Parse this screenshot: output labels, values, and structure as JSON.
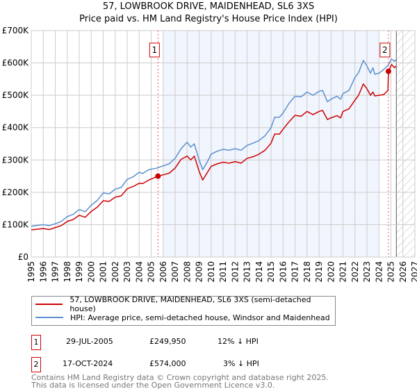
{
  "chart_data": {
    "type": "line",
    "title": "57, LOWBROOK DRIVE, MAIDENHEAD, SL6 3XS",
    "subtitle": "Price paid vs. HM Land Registry's House Price Index (HPI)",
    "xlim": [
      1995,
      2027
    ],
    "ylim": [
      0,
      700000
    ],
    "x_ticks": [
      1995,
      1996,
      1997,
      1998,
      1999,
      2000,
      2001,
      2002,
      2003,
      2004,
      2005,
      2006,
      2007,
      2008,
      2009,
      2010,
      2011,
      2012,
      2013,
      2014,
      2015,
      2016,
      2017,
      2018,
      2019,
      2020,
      2021,
      2022,
      2023,
      2024,
      2025,
      2026,
      2027
    ],
    "y_ticks": [
      {
        "v": 0,
        "label": "£0"
      },
      {
        "v": 100000,
        "label": "£100K"
      },
      {
        "v": 200000,
        "label": "£200K"
      },
      {
        "v": 300000,
        "label": "£300K"
      },
      {
        "v": 400000,
        "label": "£400K"
      },
      {
        "v": 500000,
        "label": "£500K"
      },
      {
        "v": 600000,
        "label": "£600K"
      },
      {
        "v": 700000,
        "label": "£700K"
      }
    ],
    "grid": true,
    "shaded_range": [
      2006.0,
      2024.0
    ],
    "forecast_hatch_from": 2025.45,
    "series": [
      {
        "name": "57, LOWBROOK DRIVE, MAIDENHEAD, SL6 3XS (semi-detached house)",
        "color": "#cc0000",
        "points": [
          [
            1995,
            84
          ],
          [
            1996,
            88
          ],
          [
            1996.5,
            85
          ],
          [
            1997,
            91
          ],
          [
            1997.5,
            97
          ],
          [
            1998,
            110
          ],
          [
            1998.5,
            116
          ],
          [
            1999,
            129
          ],
          [
            1999.5,
            123
          ],
          [
            2000,
            141
          ],
          [
            2000.5,
            154
          ],
          [
            2001,
            174
          ],
          [
            2001.5,
            172
          ],
          [
            2002,
            185
          ],
          [
            2002.5,
            189
          ],
          [
            2003,
            211
          ],
          [
            2003.5,
            218
          ],
          [
            2004,
            228
          ],
          [
            2004.3,
            227
          ],
          [
            2004.8,
            238
          ],
          [
            2005.57,
            249.95
          ],
          [
            2006,
            254
          ],
          [
            2006.5,
            259
          ],
          [
            2007,
            275
          ],
          [
            2007.5,
            302
          ],
          [
            2008,
            312
          ],
          [
            2008.3,
            300
          ],
          [
            2008.6,
            312
          ],
          [
            2009,
            265
          ],
          [
            2009.3,
            238
          ],
          [
            2009.7,
            262
          ],
          [
            2010,
            280
          ],
          [
            2010.5,
            288
          ],
          [
            2011,
            293
          ],
          [
            2011.5,
            290
          ],
          [
            2012,
            295
          ],
          [
            2012.5,
            290
          ],
          [
            2013,
            305
          ],
          [
            2013.5,
            310
          ],
          [
            2014,
            318
          ],
          [
            2014.5,
            330
          ],
          [
            2015,
            352
          ],
          [
            2015.3,
            380
          ],
          [
            2015.7,
            380
          ],
          [
            2016,
            395
          ],
          [
            2016.5,
            418
          ],
          [
            2017,
            438
          ],
          [
            2017.5,
            435
          ],
          [
            2018,
            450
          ],
          [
            2018.5,
            440
          ],
          [
            2019,
            450
          ],
          [
            2019.3,
            453
          ],
          [
            2019.7,
            425
          ],
          [
            2020,
            430
          ],
          [
            2020.5,
            437
          ],
          [
            2020.8,
            430
          ],
          [
            2021,
            450
          ],
          [
            2021.5,
            458
          ],
          [
            2022,
            485
          ],
          [
            2022.3,
            500
          ],
          [
            2022.7,
            535
          ],
          [
            2023,
            520
          ],
          [
            2023.3,
            500
          ],
          [
            2023.5,
            510
          ],
          [
            2023.65,
            498
          ],
          [
            2024,
            500
          ],
          [
            2024.4,
            502
          ],
          [
            2024.75,
            515
          ],
          [
            2024.79,
            574
          ],
          [
            2025.05,
            595
          ],
          [
            2025.3,
            585
          ],
          [
            2025.4,
            590
          ]
        ]
      },
      {
        "name": "HPI: Average price, semi-detached house, Windsor and Maidenhead",
        "color": "#5b8fd0",
        "points": [
          [
            1995,
            95
          ],
          [
            1996,
            100
          ],
          [
            1996.5,
            97
          ],
          [
            1997,
            103
          ],
          [
            1997.5,
            110
          ],
          [
            1998,
            125
          ],
          [
            1998.5,
            132
          ],
          [
            1999,
            147
          ],
          [
            1999.5,
            140
          ],
          [
            2000,
            160
          ],
          [
            2000.5,
            175
          ],
          [
            2001,
            198
          ],
          [
            2001.5,
            195
          ],
          [
            2002,
            210
          ],
          [
            2002.5,
            215
          ],
          [
            2003,
            240
          ],
          [
            2003.5,
            248
          ],
          [
            2004,
            262
          ],
          [
            2004.3,
            258
          ],
          [
            2004.8,
            270
          ],
          [
            2005.5,
            275
          ],
          [
            2006,
            282
          ],
          [
            2006.5,
            288
          ],
          [
            2007,
            305
          ],
          [
            2007.5,
            335
          ],
          [
            2008,
            355
          ],
          [
            2008.3,
            340
          ],
          [
            2008.6,
            350
          ],
          [
            2009,
            300
          ],
          [
            2009.3,
            270
          ],
          [
            2009.7,
            295
          ],
          [
            2010,
            318
          ],
          [
            2010.5,
            327
          ],
          [
            2011,
            333
          ],
          [
            2011.5,
            330
          ],
          [
            2012,
            335
          ],
          [
            2012.5,
            330
          ],
          [
            2013,
            345
          ],
          [
            2013.5,
            352
          ],
          [
            2014,
            360
          ],
          [
            2014.5,
            375
          ],
          [
            2015,
            400
          ],
          [
            2015.3,
            432
          ],
          [
            2015.7,
            432
          ],
          [
            2016,
            445
          ],
          [
            2016.5,
            475
          ],
          [
            2017,
            497
          ],
          [
            2017.5,
            495
          ],
          [
            2018,
            510
          ],
          [
            2018.5,
            500
          ],
          [
            2019,
            512
          ],
          [
            2019.3,
            515
          ],
          [
            2019.7,
            480
          ],
          [
            2020,
            488
          ],
          [
            2020.5,
            497
          ],
          [
            2020.8,
            488
          ],
          [
            2021,
            505
          ],
          [
            2021.5,
            515
          ],
          [
            2022,
            555
          ],
          [
            2022.3,
            570
          ],
          [
            2022.7,
            608
          ],
          [
            2023,
            590
          ],
          [
            2023.3,
            568
          ],
          [
            2023.5,
            585
          ],
          [
            2023.65,
            565
          ],
          [
            2024,
            568
          ],
          [
            2024.4,
            580
          ],
          [
            2024.75,
            592
          ],
          [
            2025.05,
            612
          ],
          [
            2025.3,
            605
          ],
          [
            2025.4,
            610
          ]
        ]
      }
    ],
    "value_unit": "thousands GBP",
    "sales": [
      {
        "id": "1",
        "x": 2005.57,
        "price": 249950,
        "date": "29-JUL-2005",
        "price_label": "£249,950",
        "hpi_diff": "12% ↓ HPI"
      },
      {
        "id": "2",
        "x": 2024.79,
        "price": 574000,
        "date": "17-OCT-2024",
        "price_label": "£574,000",
        "hpi_diff": "3% ↓ HPI"
      }
    ]
  },
  "footer": {
    "line1": "Contains HM Land Registry data © Crown copyright and database right 2025.",
    "line2": "This data is licensed under the Open Government Licence v3.0."
  }
}
